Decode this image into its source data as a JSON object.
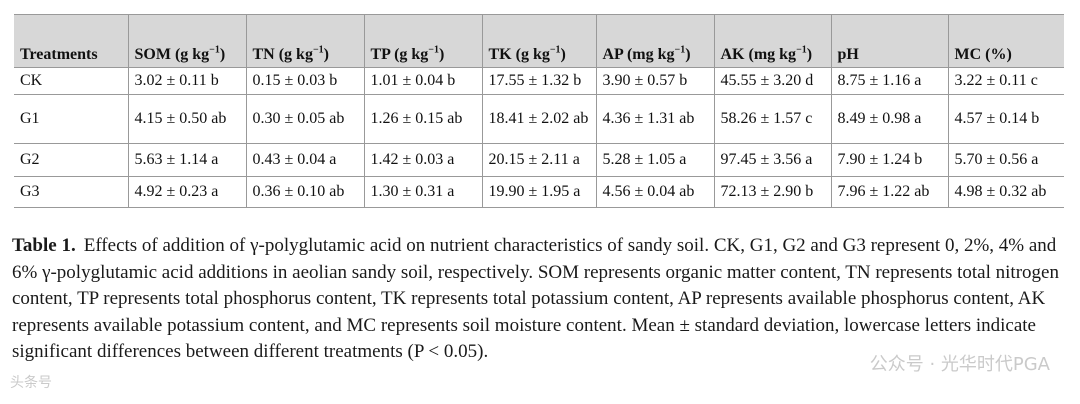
{
  "table": {
    "headers": [
      {
        "main": "Treatments",
        "sup": ""
      },
      {
        "main": "SOM (g kg",
        "sup": "−1",
        "close": ")"
      },
      {
        "main": "TN (g kg",
        "sup": "−1",
        "close": ")"
      },
      {
        "main": "TP (g kg",
        "sup": "−1",
        "close": ")"
      },
      {
        "main": "TK (g kg",
        "sup": "−1",
        "close": ")"
      },
      {
        "main": "AP (mg kg",
        "sup": "−1",
        "close": ")"
      },
      {
        "main": "AK (mg kg",
        "sup": "−1",
        "close": ")"
      },
      {
        "main": "pH",
        "sup": ""
      },
      {
        "main": "MC (%)",
        "sup": ""
      }
    ],
    "rows": [
      [
        "CK",
        "3.02 ± 0.11 b",
        "0.15 ± 0.03 b",
        "1.01 ± 0.04 b",
        "17.55 ± 1.32 b",
        "3.90 ± 0.57 b",
        "45.55 ± 3.20 d",
        "8.75 ± 1.16 a",
        "3.22 ± 0.11 c"
      ],
      [
        "G1",
        "4.15 ± 0.50 ab",
        "0.30 ± 0.05 ab",
        "1.26 ± 0.15 ab",
        "18.41 ± 2.02 ab",
        "4.36 ± 1.31 ab",
        "58.26 ± 1.57 c",
        "8.49 ± 0.98 a",
        "4.57 ± 0.14 b"
      ],
      [
        "G2",
        "5.63 ± 1.14 a",
        "0.43 ± 0.04 a",
        "1.42 ± 0.03 a",
        "20.15 ± 2.11 a",
        "5.28 ± 1.05 a",
        "97.45 ± 3.56 a",
        "7.90 ± 1.24 b",
        "5.70 ± 0.56 a"
      ],
      [
        "G3",
        "4.92 ± 0.23 a",
        "0.36 ± 0.10 ab",
        "1.30 ± 0.31 a",
        "19.90 ± 1.95 a",
        "4.56 ± 0.04 ab",
        "72.13 ± 2.90 b",
        "7.96 ± 1.22 ab",
        "4.98 ± 0.32 ab"
      ]
    ]
  },
  "caption": {
    "label": "Table 1.",
    "text": "Effects of addition of γ-polyglutamic acid on nutrient characteristics of sandy soil. CK, G1, G2 and G3 represent 0, 2%, 4% and 6% γ-polyglutamic acid additions in aeolian sandy soil, respectively. SOM represents organic matter content, TN represents total nitrogen content, TP represents total phosphorus content, TK represents total potassium content, AP represents available phosphorus content, AK represents available potassium content, and MC represents soil moisture content. Mean ± standard deviation, lowercase letters indicate significant differences between different treatments (P < 0.05)."
  },
  "watermarks": {
    "right": "公众号 · 光华时代PGA",
    "left": "头条号"
  }
}
